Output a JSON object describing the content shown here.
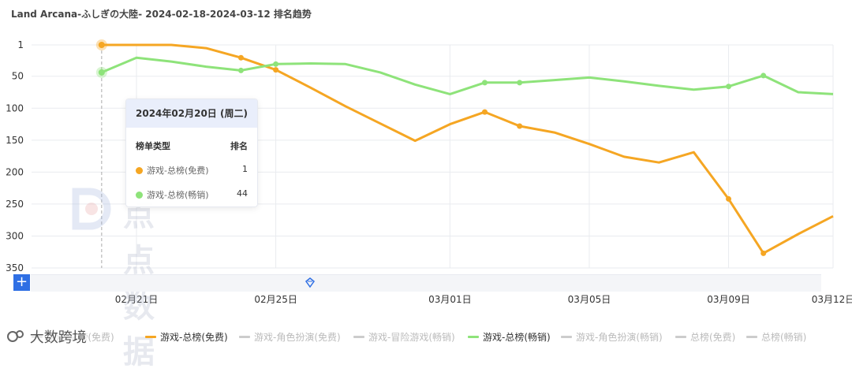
{
  "title": "Land Arcana-ふしぎの大陸- 2024-02-18-2024-03-12 排名趋势",
  "chart_data": {
    "type": "line",
    "x": [
      "2024-02-20",
      "2024-02-21",
      "2024-02-22",
      "2024-02-23",
      "2024-02-24",
      "2024-02-25",
      "2024-02-26",
      "2024-02-27",
      "2024-02-28",
      "2024-02-29",
      "2024-03-01",
      "2024-03-02",
      "2024-03-03",
      "2024-03-04",
      "2024-03-05",
      "2024-03-06",
      "2024-03-07",
      "2024-03-08",
      "2024-03-09",
      "2024-03-10",
      "2024-03-11",
      "2024-03-12"
    ],
    "x_tick_labels": [
      "02月21日",
      "02月25日",
      "03月01日",
      "03月05日",
      "03月09日",
      "03月12日"
    ],
    "x_tick_dates": [
      "2024-02-21",
      "2024-02-25",
      "2024-03-01",
      "2024-03-05",
      "2024-03-09",
      "2024-03-12"
    ],
    "y_tick_labels": [
      "1",
      "50",
      "100",
      "150",
      "200",
      "250",
      "300",
      "350"
    ],
    "y_ticks": [
      1,
      50,
      100,
      150,
      200,
      250,
      300,
      350
    ],
    "ylim": [
      1,
      350
    ],
    "y_inverted": true,
    "series": [
      {
        "name": "游戏-总榜(免费)",
        "color": "#f5a623",
        "values": [
          1,
          1,
          1,
          6,
          21,
          40,
          68,
          97,
          124,
          151,
          125,
          106,
          128,
          138,
          156,
          176,
          185,
          169,
          242,
          327,
          297,
          269
        ],
        "markers": [
          "2024-02-20",
          "2024-02-24",
          "2024-02-25",
          "2024-03-02",
          "2024-03-03",
          "2024-03-09",
          "2024-03-10"
        ]
      },
      {
        "name": "游戏-总榜(畅销)",
        "color": "#8ee37a",
        "values": [
          44,
          21,
          27,
          35,
          41,
          31,
          30,
          31,
          44,
          63,
          78,
          60,
          60,
          56,
          52,
          58,
          65,
          71,
          66,
          49,
          75,
          78
        ],
        "markers": [
          "2024-02-20",
          "2024-02-24",
          "2024-02-25",
          "2024-03-02",
          "2024-03-03",
          "2024-03-09",
          "2024-03-10"
        ]
      }
    ],
    "grid": true,
    "legend_position": "bottom"
  },
  "tooltip": {
    "date": "2024年02月20日 (周二)",
    "col_type": "榜单类型",
    "col_rank": "排名",
    "rows": [
      {
        "label": "游戏-总榜(免费)",
        "value": "1",
        "color": "#f5a623"
      },
      {
        "label": "游戏-总榜(畅销)",
        "value": "44",
        "color": "#8ee37a"
      }
    ]
  },
  "legend": [
    {
      "label": "游戏-总榜(免费)",
      "color": "#cccccc",
      "active": false
    },
    {
      "label": "游戏-总榜(免费)",
      "color": "#f5a623",
      "active": true
    },
    {
      "label": "游戏-角色扮演(免费)",
      "color": "#cccccc",
      "active": false
    },
    {
      "label": "游戏-冒险游戏(畅销)",
      "color": "#cccccc",
      "active": false
    },
    {
      "label": "游戏-总榜(畅销)",
      "color": "#8ee37a",
      "active": true
    },
    {
      "label": "游戏-角色扮演(畅销)",
      "color": "#cccccc",
      "active": false
    },
    {
      "label": "总榜(免费)",
      "color": "#cccccc",
      "active": false
    },
    {
      "label": "总榜(畅销)",
      "color": "#cccccc",
      "active": false
    }
  ],
  "watermark": "点点数据",
  "brand": "大数跨境"
}
